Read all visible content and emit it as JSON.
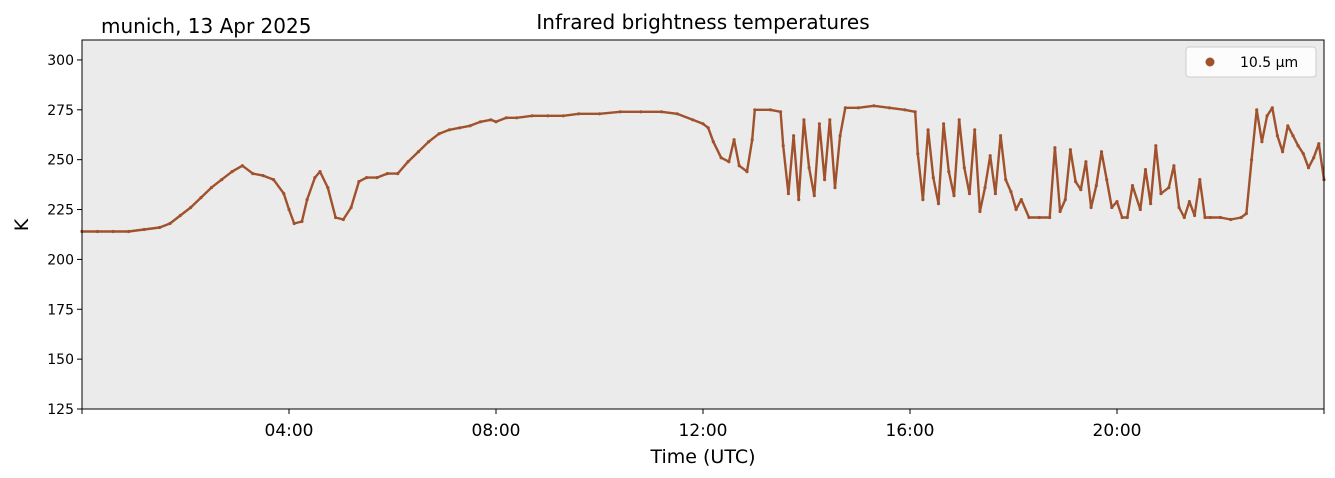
{
  "chart_data": {
    "type": "scatter",
    "title": "Infrared brightness temperatures",
    "subtitle": "munich, 13 Apr 2025",
    "xlabel": "Time (UTC)",
    "ylabel": "K",
    "x_unit": "hours UTC",
    "xlim": [
      0,
      24
    ],
    "ylim": [
      125,
      310
    ],
    "xticks": [
      4,
      8,
      12,
      16,
      20
    ],
    "xtick_labels": [
      "04:00",
      "08:00",
      "12:00",
      "16:00",
      "20:00"
    ],
    "yticks": [
      125,
      150,
      175,
      200,
      225,
      250,
      275,
      300
    ],
    "ytick_labels": [
      "125",
      "150",
      "175",
      "200",
      "225",
      "250",
      "275",
      "300"
    ],
    "grid": false,
    "legend_position": "top-right",
    "series": [
      {
        "name": "10.5 µm",
        "color": "#a0522d",
        "points": [
          [
            0.0,
            214
          ],
          [
            0.3,
            214
          ],
          [
            0.6,
            214
          ],
          [
            0.9,
            214
          ],
          [
            1.2,
            215
          ],
          [
            1.5,
            216
          ],
          [
            1.7,
            218
          ],
          [
            1.9,
            222
          ],
          [
            2.1,
            226
          ],
          [
            2.3,
            231
          ],
          [
            2.5,
            236
          ],
          [
            2.7,
            240
          ],
          [
            2.9,
            244
          ],
          [
            3.1,
            247
          ],
          [
            3.3,
            243
          ],
          [
            3.5,
            242
          ],
          [
            3.7,
            240
          ],
          [
            3.9,
            233
          ],
          [
            4.0,
            225
          ],
          [
            4.1,
            218
          ],
          [
            4.25,
            219
          ],
          [
            4.35,
            230
          ],
          [
            4.5,
            241
          ],
          [
            4.6,
            244
          ],
          [
            4.75,
            236
          ],
          [
            4.9,
            221
          ],
          [
            5.05,
            220
          ],
          [
            5.2,
            226
          ],
          [
            5.35,
            239
          ],
          [
            5.5,
            241
          ],
          [
            5.7,
            241
          ],
          [
            5.9,
            243
          ],
          [
            6.1,
            243
          ],
          [
            6.3,
            249
          ],
          [
            6.5,
            254
          ],
          [
            6.7,
            259
          ],
          [
            6.9,
            263
          ],
          [
            7.1,
            265
          ],
          [
            7.3,
            266
          ],
          [
            7.5,
            267
          ],
          [
            7.7,
            269
          ],
          [
            7.9,
            270
          ],
          [
            8.0,
            269
          ],
          [
            8.2,
            271
          ],
          [
            8.4,
            271
          ],
          [
            8.7,
            272
          ],
          [
            9.0,
            272
          ],
          [
            9.3,
            272
          ],
          [
            9.6,
            273
          ],
          [
            10.0,
            273
          ],
          [
            10.4,
            274
          ],
          [
            10.8,
            274
          ],
          [
            11.2,
            274
          ],
          [
            11.5,
            273
          ],
          [
            11.8,
            270
          ],
          [
            12.0,
            268
          ],
          [
            12.1,
            266
          ],
          [
            12.2,
            259
          ],
          [
            12.35,
            251
          ],
          [
            12.5,
            249
          ],
          [
            12.6,
            260
          ],
          [
            12.7,
            247
          ],
          [
            12.85,
            244
          ],
          [
            12.95,
            260
          ],
          [
            13.0,
            275
          ],
          [
            13.3,
            275
          ],
          [
            13.5,
            274
          ],
          [
            13.55,
            257
          ],
          [
            13.65,
            233
          ],
          [
            13.75,
            262
          ],
          [
            13.85,
            230
          ],
          [
            13.95,
            270
          ],
          [
            14.05,
            246
          ],
          [
            14.15,
            232
          ],
          [
            14.25,
            268
          ],
          [
            14.35,
            240
          ],
          [
            14.45,
            270
          ],
          [
            14.55,
            236
          ],
          [
            14.65,
            262
          ],
          [
            14.75,
            276
          ],
          [
            15.0,
            276
          ],
          [
            15.3,
            277
          ],
          [
            15.6,
            276
          ],
          [
            15.9,
            275
          ],
          [
            16.1,
            274
          ],
          [
            16.15,
            253
          ],
          [
            16.25,
            230
          ],
          [
            16.35,
            265
          ],
          [
            16.45,
            241
          ],
          [
            16.55,
            228
          ],
          [
            16.65,
            268
          ],
          [
            16.75,
            244
          ],
          [
            16.85,
            232
          ],
          [
            16.95,
            270
          ],
          [
            17.05,
            246
          ],
          [
            17.15,
            233
          ],
          [
            17.25,
            265
          ],
          [
            17.35,
            224
          ],
          [
            17.45,
            236
          ],
          [
            17.55,
            252
          ],
          [
            17.65,
            233
          ],
          [
            17.75,
            262
          ],
          [
            17.85,
            240
          ],
          [
            17.95,
            234
          ],
          [
            18.05,
            225
          ],
          [
            18.15,
            230
          ],
          [
            18.3,
            221
          ],
          [
            18.5,
            221
          ],
          [
            18.7,
            221
          ],
          [
            18.8,
            256
          ],
          [
            18.9,
            224
          ],
          [
            19.0,
            230
          ],
          [
            19.1,
            255
          ],
          [
            19.2,
            239
          ],
          [
            19.3,
            235
          ],
          [
            19.4,
            249
          ],
          [
            19.5,
            226
          ],
          [
            19.6,
            237
          ],
          [
            19.7,
            254
          ],
          [
            19.8,
            240
          ],
          [
            19.9,
            226
          ],
          [
            20.0,
            229
          ],
          [
            20.1,
            221
          ],
          [
            20.2,
            221
          ],
          [
            20.3,
            237
          ],
          [
            20.45,
            225
          ],
          [
            20.55,
            245
          ],
          [
            20.65,
            228
          ],
          [
            20.75,
            257
          ],
          [
            20.85,
            233
          ],
          [
            21.0,
            236
          ],
          [
            21.1,
            247
          ],
          [
            21.2,
            226
          ],
          [
            21.3,
            221
          ],
          [
            21.4,
            229
          ],
          [
            21.5,
            222
          ],
          [
            21.6,
            240
          ],
          [
            21.7,
            221
          ],
          [
            21.8,
            221
          ],
          [
            22.0,
            221
          ],
          [
            22.2,
            220
          ],
          [
            22.4,
            221
          ],
          [
            22.5,
            223
          ],
          [
            22.6,
            250
          ],
          [
            22.7,
            275
          ],
          [
            22.8,
            259
          ],
          [
            22.9,
            272
          ],
          [
            23.0,
            276
          ],
          [
            23.1,
            262
          ],
          [
            23.2,
            254
          ],
          [
            23.3,
            267
          ],
          [
            23.4,
            262
          ],
          [
            23.5,
            257
          ],
          [
            23.6,
            253
          ],
          [
            23.7,
            246
          ],
          [
            23.8,
            251
          ],
          [
            23.9,
            258
          ],
          [
            24.0,
            240
          ]
        ]
      }
    ]
  }
}
